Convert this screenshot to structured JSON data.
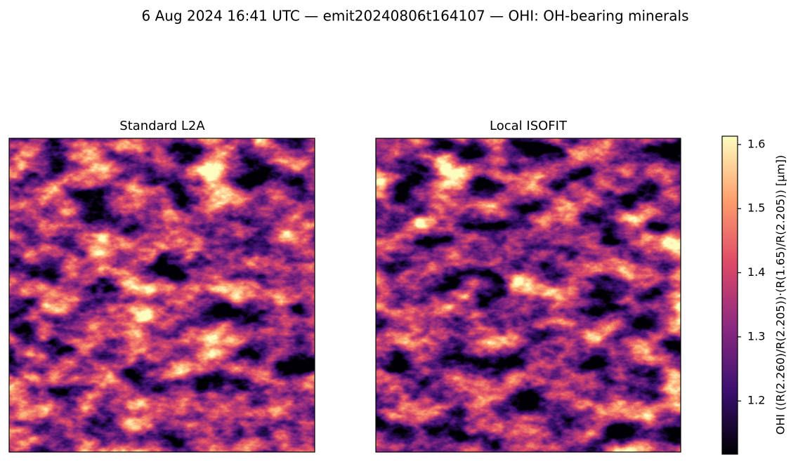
{
  "chart_data": {
    "type": "heatmap",
    "title": "6 Aug 2024 16:41 UTC — emit20240806t164107 — OHI: OH-bearing minerals",
    "panels": [
      {
        "title": "Standard L2A"
      },
      {
        "title": "Local ISOFIT"
      }
    ],
    "colorbar": {
      "label": "OHI  ((R(2.260)/R(2.205))·(R(1.65)/R(2.205))  [µm])",
      "colormap": "magma",
      "lim": [
        1.117,
        1.613
      ],
      "ticks": [
        1.2,
        1.3,
        1.4,
        1.5,
        1.6
      ]
    }
  }
}
